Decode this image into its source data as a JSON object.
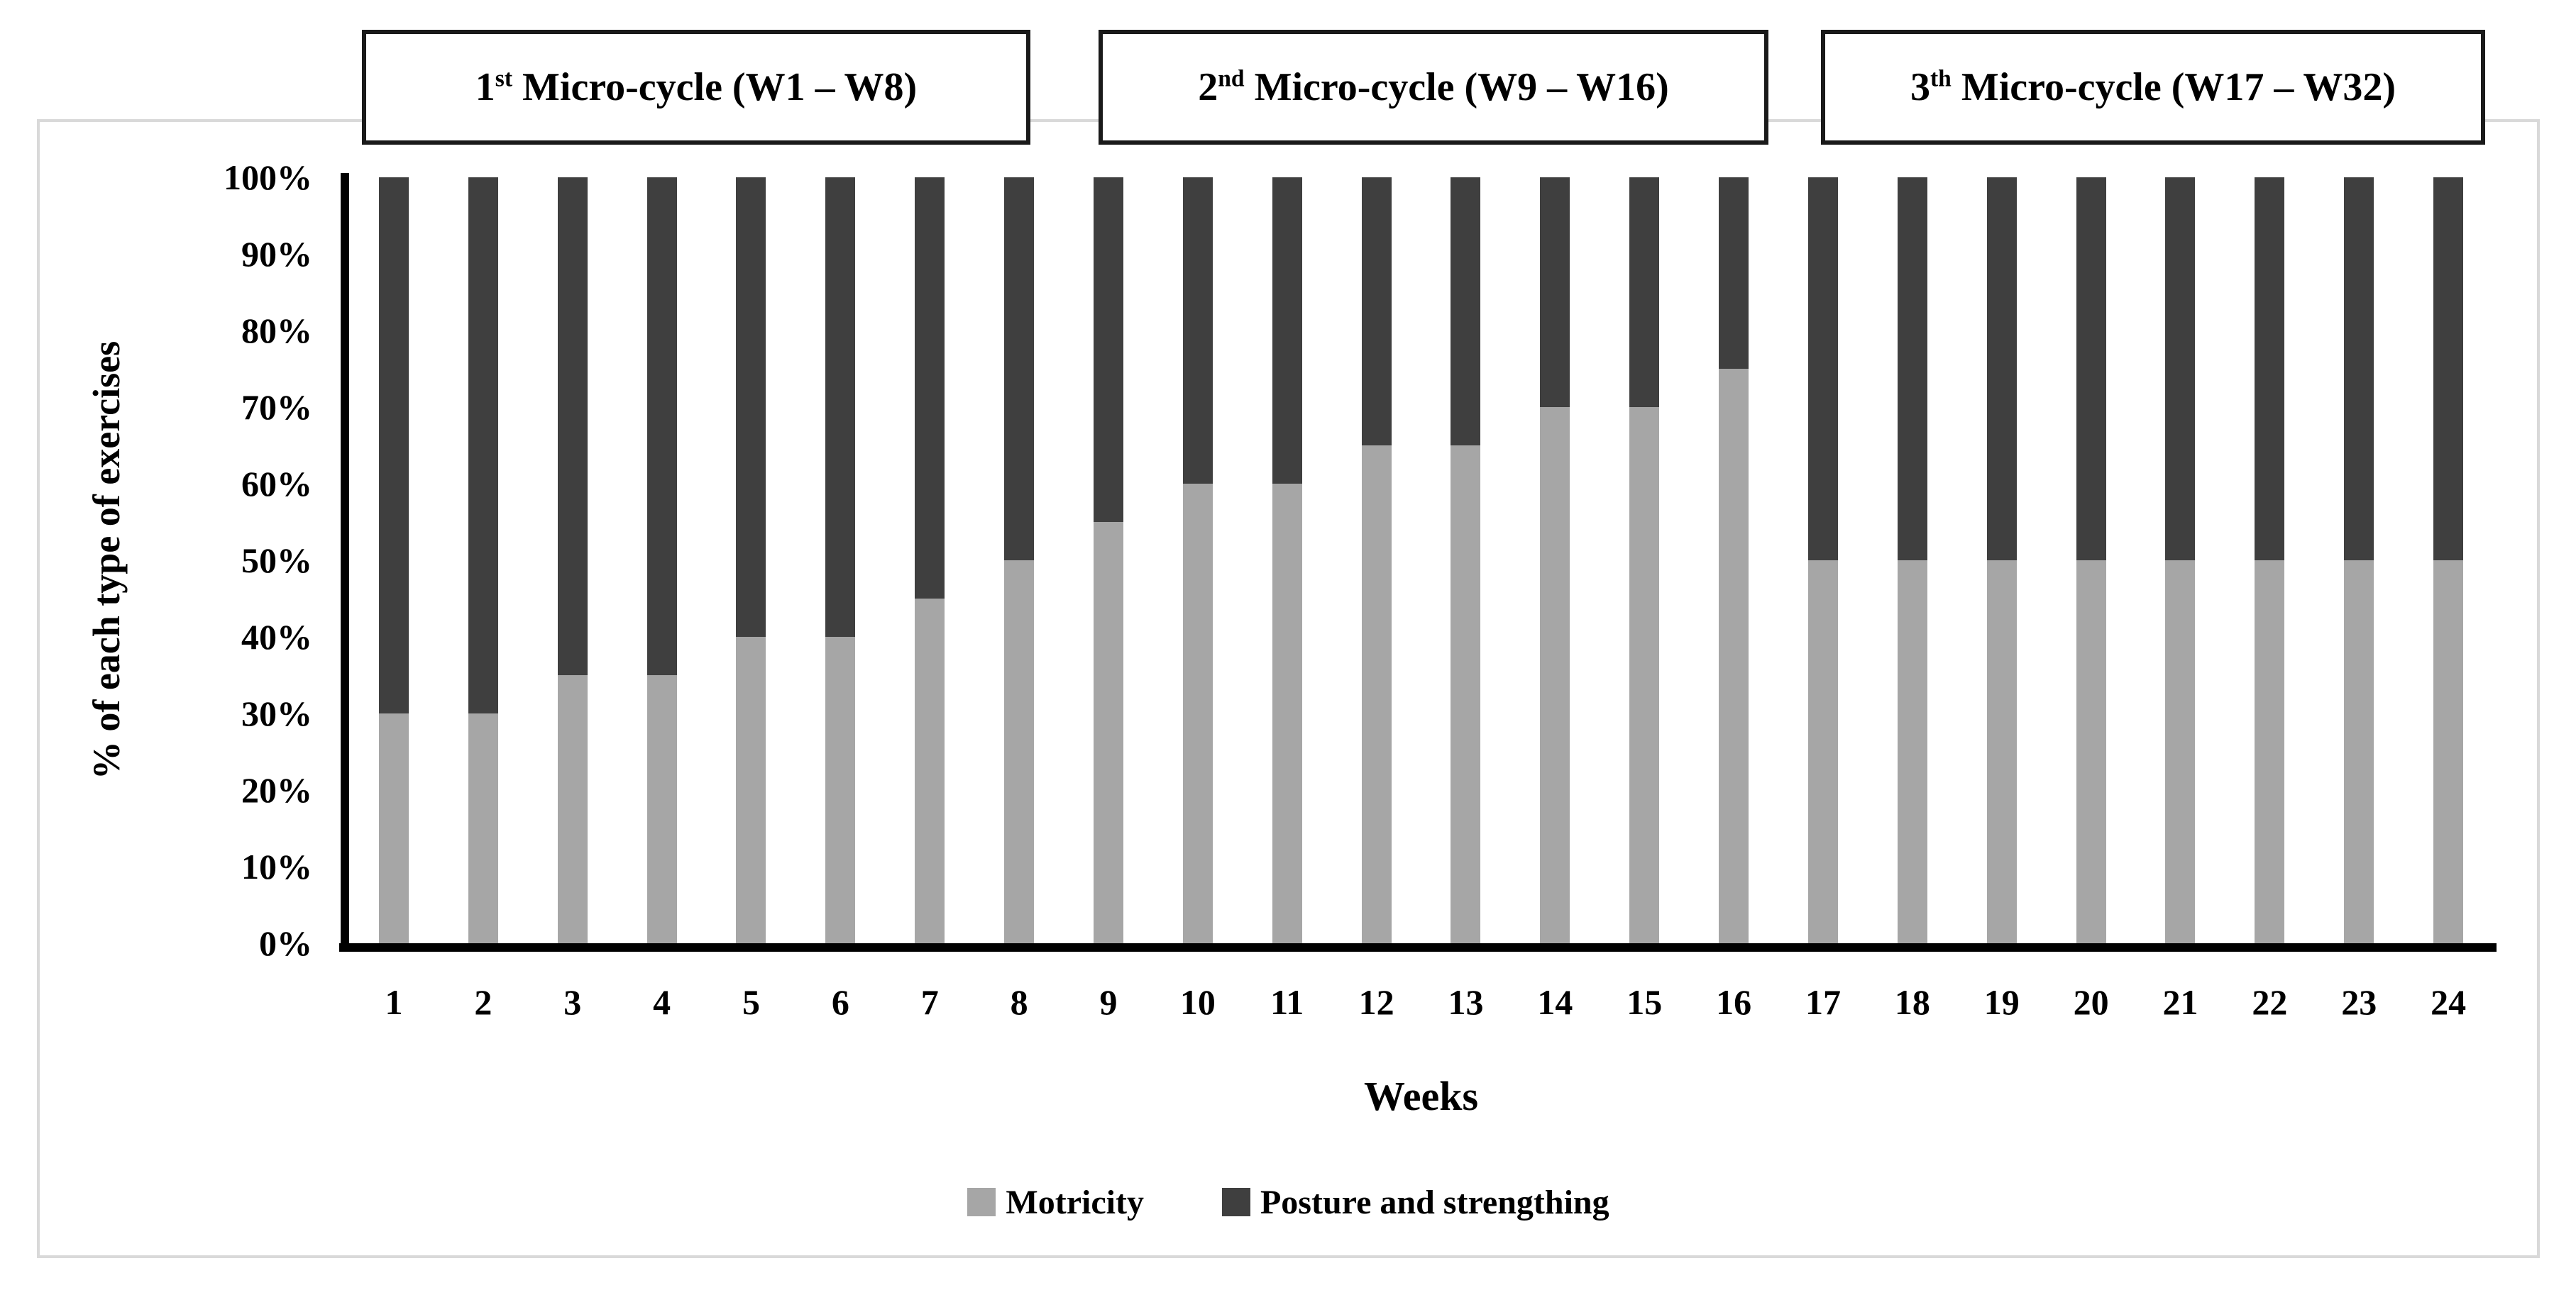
{
  "figure": {
    "cycle_boxes": [
      {
        "num": "1",
        "sup": "st",
        "rest": " Micro-cycle (W1 – W8)"
      },
      {
        "num": "2",
        "sup": "nd",
        "rest": " Micro-cycle (W9 – W16)"
      },
      {
        "num": "3",
        "sup": "th",
        "rest": " Micro-cycle (W17 – W32)"
      }
    ]
  },
  "chart_data": {
    "type": "bar",
    "subtype": "100-percent-stacked-column",
    "title": "",
    "xlabel": "Weeks",
    "ylabel": "% of each type of exercises",
    "categories": [
      "1",
      "2",
      "3",
      "4",
      "5",
      "6",
      "7",
      "8",
      "9",
      "10",
      "11",
      "12",
      "13",
      "14",
      "15",
      "16",
      "17",
      "18",
      "19",
      "20",
      "21",
      "22",
      "23",
      "24"
    ],
    "series": [
      {
        "name": "Motricity",
        "color": "#a6a6a6",
        "values": [
          30,
          30,
          35,
          35,
          40,
          40,
          45,
          50,
          55,
          60,
          60,
          65,
          65,
          70,
          70,
          75,
          50,
          50,
          50,
          50,
          50,
          50,
          50,
          50
        ]
      },
      {
        "name": "Posture and strengthing",
        "color": "#3f3f3f",
        "values": [
          70,
          70,
          65,
          65,
          60,
          60,
          55,
          50,
          45,
          40,
          40,
          35,
          35,
          30,
          30,
          25,
          50,
          50,
          50,
          50,
          50,
          50,
          50,
          50
        ]
      }
    ],
    "yticks": [
      "100%",
      "90%",
      "80%",
      "70%",
      "60%",
      "50%",
      "40%",
      "30%",
      "20%",
      "10%",
      "0%"
    ],
    "ylim": [
      0,
      100
    ],
    "grid": false,
    "legend_position": "bottom",
    "axis_color": "#000000",
    "frame_border_color": "#d9d9d9",
    "box_border_color": "#1a1a1a"
  }
}
